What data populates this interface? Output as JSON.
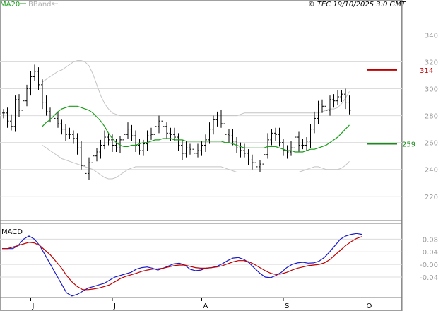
{
  "header": {
    "legend_ma": "MA20",
    "legend_bb": "BBands",
    "copyright": "© TEC 19/10/2025 3:0 GMT"
  },
  "colors": {
    "bars": "#000000",
    "ma": "#1a9e1a",
    "bbands": "#c4c4c4",
    "resistance": "#c00000",
    "support": "#1a8a1a",
    "macd": "#1a1acc",
    "signal": "#c00000",
    "grid": "#dcdcdc",
    "axis_text": "#9a9a9a"
  },
  "chart_data": [
    {
      "type": "ohlc",
      "title": "",
      "y_ticks": [
        "220",
        "240",
        "260",
        "280",
        "300",
        "320",
        "340"
      ],
      "ylim": [
        202,
        366
      ],
      "x_labels": [
        {
          "label": "J",
          "index": 7
        },
        {
          "label": "J",
          "index": 28
        },
        {
          "label": "A",
          "index": 51
        },
        {
          "label": "S",
          "index": 72
        },
        {
          "label": "O",
          "index": 93
        }
      ],
      "levels": [
        {
          "name": "resistance",
          "value": 314
        },
        {
          "name": "support",
          "value": 259
        }
      ],
      "series": [
        {
          "name": "price",
          "role": "close",
          "values": [
            282,
            276,
            272,
            292,
            284,
            291,
            300,
            309,
            313,
            303,
            290,
            283,
            279,
            278,
            274,
            270,
            266,
            266,
            263,
            256,
            243,
            237,
            245,
            250,
            253,
            258,
            264,
            262,
            258,
            256,
            262,
            266,
            270,
            265,
            258,
            254,
            259,
            265,
            266,
            272,
            276,
            272,
            267,
            266,
            264,
            258,
            252,
            256,
            255,
            252,
            254,
            258,
            262,
            270,
            277,
            279,
            274,
            266,
            265,
            261,
            256,
            254,
            252,
            247,
            245,
            242,
            244,
            251,
            262,
            267,
            266,
            260,
            254,
            253,
            256,
            264,
            258,
            258,
            261,
            270,
            278,
            288,
            287,
            284,
            292,
            291,
            294,
            296,
            290,
            284
          ]
        },
        {
          "name": "MA20",
          "values": [
            272,
            275,
            277,
            280,
            283,
            285,
            286,
            287,
            287,
            287,
            286,
            285,
            284,
            282,
            279,
            276,
            272,
            267,
            263,
            260,
            258,
            257,
            257,
            258,
            258,
            259,
            260,
            260,
            261,
            262,
            262,
            263,
            263,
            263,
            262,
            262,
            262,
            261,
            261,
            261,
            261,
            261,
            261,
            261,
            261,
            261,
            261,
            260,
            260,
            259,
            258,
            257,
            256,
            256,
            256,
            256,
            256,
            256,
            257,
            257,
            257,
            256,
            255,
            254,
            254,
            253,
            253,
            253,
            254,
            255,
            255,
            256,
            257,
            258,
            260,
            262,
            264,
            267,
            270,
            273
          ]
        },
        {
          "name": "BBands upper",
          "values": [
            305,
            307,
            309,
            311,
            313,
            314,
            316,
            318,
            320,
            321,
            321,
            320,
            317,
            311,
            303,
            295,
            289,
            285,
            282,
            281,
            280,
            280,
            280,
            280,
            280,
            280,
            280,
            280,
            280,
            280,
            280,
            280,
            280,
            280,
            280,
            280,
            280,
            280,
            280,
            280,
            280,
            280,
            280,
            280,
            280,
            280,
            280,
            280,
            280,
            280,
            280,
            281,
            282,
            282,
            282,
            282,
            282,
            282,
            282,
            282,
            282,
            282,
            282,
            282,
            282,
            282,
            282,
            282,
            282,
            282,
            282,
            282,
            283,
            284,
            285,
            285,
            286,
            289,
            293,
            298
          ]
        },
        {
          "name": "BBands lower",
          "values": [
            258,
            256,
            254,
            252,
            250,
            248,
            247,
            246,
            245,
            244,
            243,
            242,
            241,
            240,
            238,
            236,
            234,
            233,
            233,
            234,
            236,
            238,
            240,
            241,
            242,
            242,
            242,
            242,
            242,
            242,
            242,
            242,
            242,
            242,
            242,
            242,
            242,
            242,
            242,
            242,
            242,
            242,
            242,
            242,
            242,
            242,
            242,
            241,
            240,
            239,
            238,
            238,
            238,
            238,
            238,
            238,
            238,
            238,
            238,
            238,
            238,
            238,
            238,
            238,
            238,
            238,
            238,
            239,
            240,
            241,
            242,
            242,
            241,
            240,
            240,
            240,
            240,
            241,
            243,
            246
          ]
        }
      ]
    },
    {
      "type": "line",
      "title": "MACD",
      "y_ticks": [
        "0.08",
        "0.04",
        "-0.00",
        "-0.04"
      ],
      "ylim": [
        -0.105,
        0.13
      ],
      "series": [
        {
          "name": "MACD",
          "values": [
            0.05,
            0.05,
            0.05,
            0.06,
            0.08,
            0.09,
            0.08,
            0.06,
            0.03,
            0.0,
            -0.03,
            -0.06,
            -0.09,
            -0.1,
            -0.095,
            -0.085,
            -0.075,
            -0.07,
            -0.065,
            -0.06,
            -0.05,
            -0.04,
            -0.035,
            -0.03,
            -0.025,
            -0.015,
            -0.01,
            -0.008,
            -0.012,
            -0.018,
            -0.012,
            -0.005,
            0.002,
            0.004,
            -0.002,
            -0.015,
            -0.02,
            -0.018,
            -0.012,
            -0.01,
            -0.006,
            0.002,
            0.012,
            0.02,
            0.022,
            0.016,
            0.005,
            -0.012,
            -0.028,
            -0.04,
            -0.042,
            -0.035,
            -0.025,
            -0.01,
            0.0,
            0.005,
            0.007,
            0.004,
            0.005,
            0.01,
            0.022,
            0.04,
            0.06,
            0.08,
            0.09,
            0.095,
            0.098,
            0.095
          ]
        },
        {
          "name": "Signal",
          "values": [
            0.05,
            0.05,
            0.055,
            0.06,
            0.065,
            0.07,
            0.068,
            0.06,
            0.045,
            0.03,
            0.01,
            -0.01,
            -0.035,
            -0.055,
            -0.07,
            -0.08,
            -0.08,
            -0.078,
            -0.075,
            -0.07,
            -0.065,
            -0.055,
            -0.045,
            -0.038,
            -0.033,
            -0.028,
            -0.022,
            -0.018,
            -0.015,
            -0.014,
            -0.012,
            -0.008,
            -0.004,
            -0.002,
            -0.002,
            -0.006,
            -0.01,
            -0.012,
            -0.012,
            -0.01,
            -0.008,
            -0.004,
            0.002,
            0.008,
            0.012,
            0.012,
            0.008,
            0.0,
            -0.01,
            -0.02,
            -0.028,
            -0.032,
            -0.03,
            -0.025,
            -0.018,
            -0.012,
            -0.008,
            -0.004,
            -0.002,
            0.0,
            0.005,
            0.015,
            0.03,
            0.045,
            0.06,
            0.072,
            0.082,
            0.088
          ]
        }
      ]
    }
  ]
}
